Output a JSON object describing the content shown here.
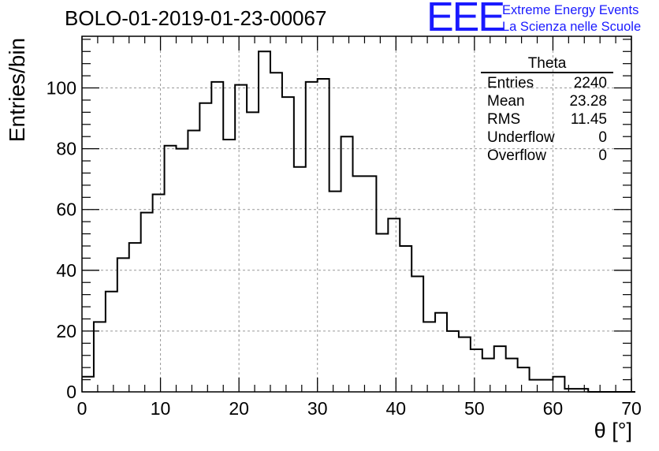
{
  "title": "BOLO-01-2019-01-23-00067",
  "logo": {
    "mark": "EEE",
    "line1": "Extreme Energy Events",
    "line2": "La Scienza nelle Scuole",
    "color": "#1a1aff"
  },
  "stats_box": {
    "title": "Theta",
    "rows": [
      {
        "label": "Entries",
        "value": "2240"
      },
      {
        "label": "Mean",
        "value": "23.28"
      },
      {
        "label": "RMS",
        "value": "11.45"
      },
      {
        "label": "Underflow",
        "value": "0"
      },
      {
        "label": "Overflow",
        "value": "0"
      }
    ]
  },
  "chart_data": {
    "type": "bar",
    "histogram": true,
    "xlabel": "θ [°]",
    "ylabel": "Entries/bin",
    "xlim": [
      0,
      70
    ],
    "ylim": [
      0,
      117
    ],
    "bin_width": 1.5,
    "bin_start": 0,
    "values": [
      5,
      23,
      33,
      44,
      49,
      59,
      65,
      81,
      80,
      86,
      95,
      102,
      83,
      101,
      92,
      112,
      105,
      97,
      74,
      102,
      103,
      66,
      84,
      71,
      71,
      52,
      57,
      48,
      38,
      23,
      26,
      20,
      18,
      14,
      11,
      15,
      11,
      8,
      4,
      4,
      5,
      1,
      1,
      0,
      0,
      0,
      0
    ],
    "xticks": [
      "0",
      "10",
      "20",
      "30",
      "40",
      "50",
      "60",
      "70"
    ],
    "yticks": [
      "0",
      "20",
      "40",
      "60",
      "80",
      "100"
    ],
    "grid": true,
    "line_color": "#000000"
  }
}
